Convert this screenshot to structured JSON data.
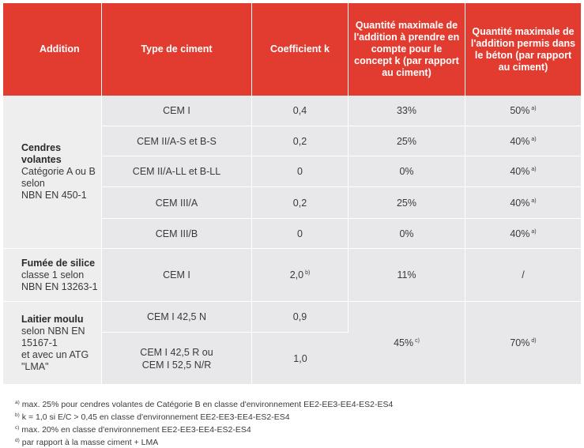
{
  "headers": [
    "Addition",
    "Type de ciment",
    "Coefficient k",
    "Quantité maximale de l'addition à prendre en compte pour le concept k (par rapport au ciment)",
    "Quantité maximale de l'addition permis dans le béton (par rapport au ciment)"
  ],
  "groups": [
    {
      "name": "Cendres volantes",
      "desc_lines": [
        "Catégorie A ou B",
        "selon",
        "NBN EN 450-1"
      ],
      "rows": [
        {
          "cement": "CEM I",
          "k": "0,4",
          "k_note": "",
          "qty_k": "33%",
          "qty_k_note": "",
          "qty_max": "50%",
          "qty_max_note": "a)"
        },
        {
          "cement": "CEM II/A-S et B-S",
          "k": "0,2",
          "k_note": "",
          "qty_k": "25%",
          "qty_k_note": "",
          "qty_max": "40%",
          "qty_max_note": "a)"
        },
        {
          "cement": "CEM II/A-LL et B-LL",
          "k": "0",
          "k_note": "",
          "qty_k": "0%",
          "qty_k_note": "",
          "qty_max": "40%",
          "qty_max_note": "a)"
        },
        {
          "cement": "CEM III/A",
          "k": "0,2",
          "k_note": "",
          "qty_k": "25%",
          "qty_k_note": "",
          "qty_max": "40%",
          "qty_max_note": "a)"
        },
        {
          "cement": "CEM III/B",
          "k": "0",
          "k_note": "",
          "qty_k": "0%",
          "qty_k_note": "",
          "qty_max": "40%",
          "qty_max_note": "a)"
        }
      ]
    },
    {
      "name": "Fumée de silice",
      "desc_lines": [
        "classe 1 selon",
        "NBN EN 13263-1"
      ],
      "rows": [
        {
          "cement": "CEM I",
          "k": "2,0",
          "k_note": "b)",
          "qty_k": "11%",
          "qty_k_note": "",
          "qty_max": "/",
          "qty_max_note": ""
        }
      ]
    },
    {
      "name": "Laitier moulu",
      "desc_lines": [
        "selon NBN EN",
        "15167-1",
        "et avec un ATG",
        "\"LMA\""
      ],
      "rows": [
        {
          "cement_lines": [
            "CEM I 42,5 N"
          ],
          "k": "0,9"
        },
        {
          "cement_lines": [
            "CEM I 42,5 R ou",
            "CEM I 52,5 N/R"
          ],
          "k": "1,0"
        }
      ],
      "shared_qty_k": "45%",
      "shared_qty_k_note": "c)",
      "shared_qty_max": "70%",
      "shared_qty_max_note": "d)"
    }
  ],
  "footnotes": [
    {
      "mark": "a)",
      "text": "max. 25% pour cendres volantes de Catégorie B en classe d'environnement EE2-EE3-EE4-ES2-ES4"
    },
    {
      "mark": "b)",
      "text": "k = 1,0 si E/C > 0,45 en classe d'environnement EE2-EE3-EE4-ES2-ES4"
    },
    {
      "mark": "c)",
      "text": "max. 20% en classe d'environnement EE2-EE3-EE4-ES2-ES4"
    },
    {
      "mark": "d)",
      "text": "par rapport à la masse ciment + LMA"
    }
  ],
  "colors": {
    "header_bg": "#e23c31",
    "header_text": "#ffffff",
    "cell_bg": "#e8e8ea",
    "addition_bg": "#eeeeef"
  }
}
